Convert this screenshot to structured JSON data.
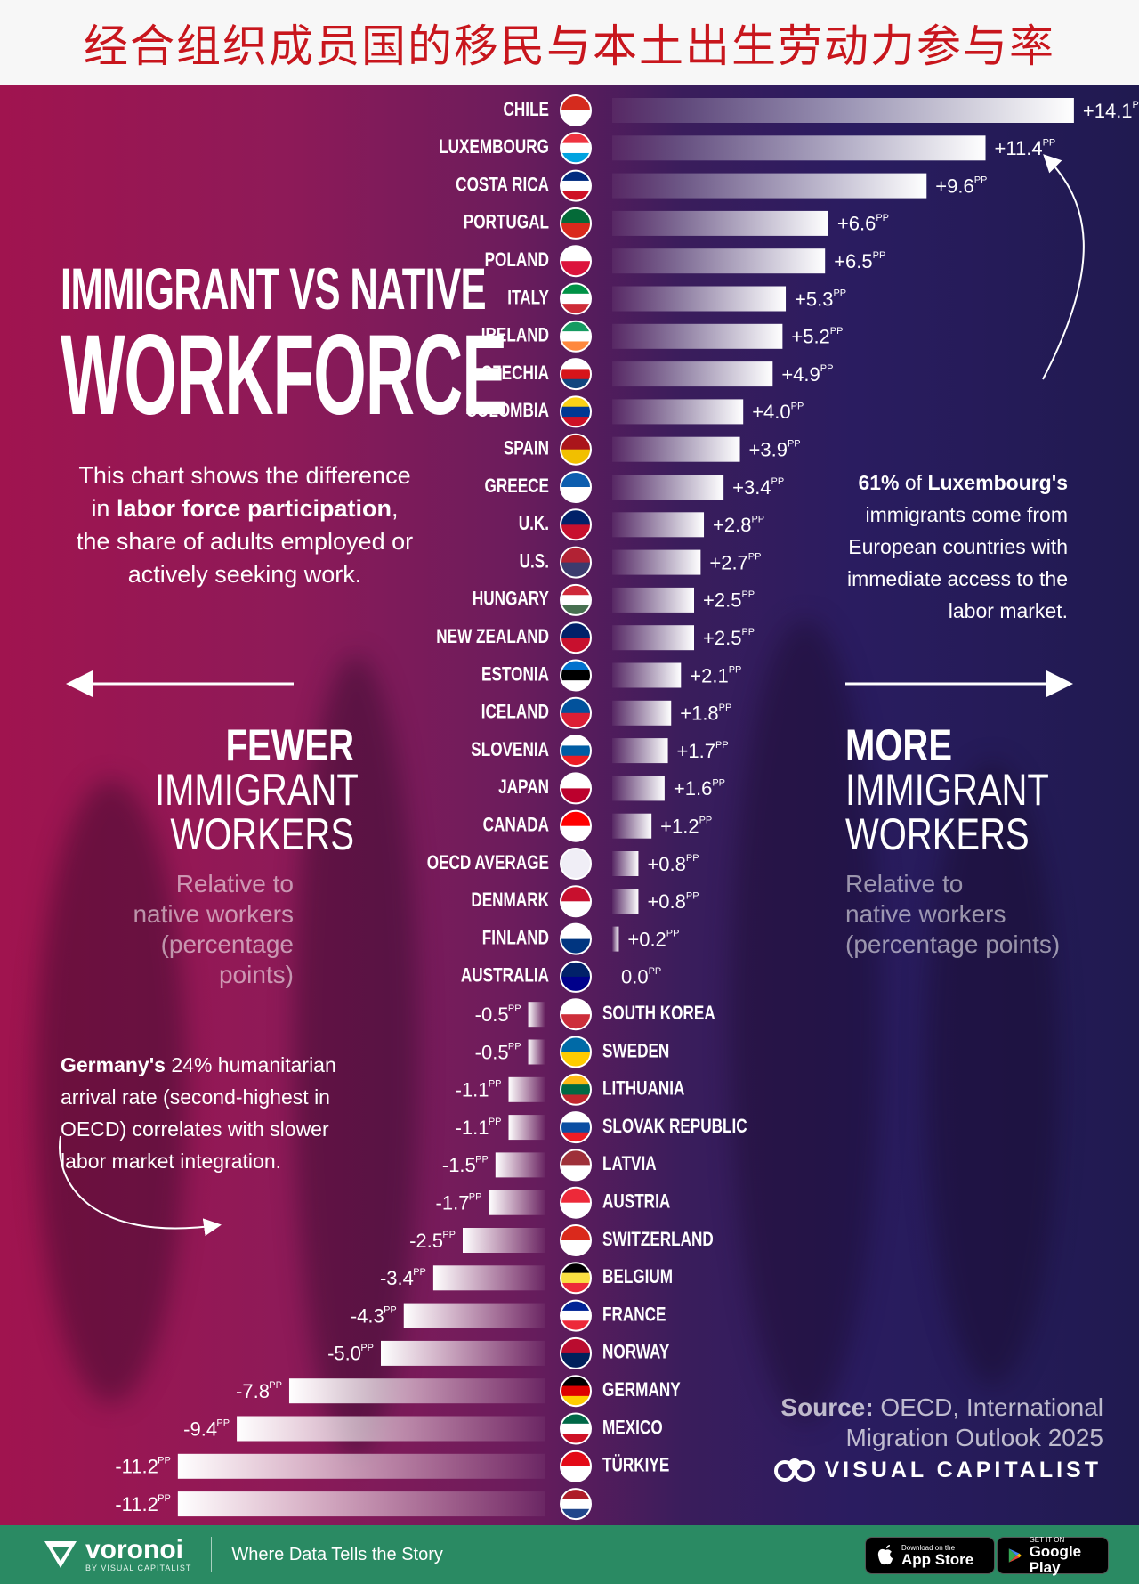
{
  "header": {
    "title": "经合组织成员国的移民与本土出生劳动力参与率"
  },
  "infographic": {
    "title_line1": "IMMIGRANT VS NATIVE",
    "title_line2": "WORKFORCE",
    "description": {
      "part1": "This chart shows the difference in ",
      "bold": "labor force participation",
      "part2": ", the share of adults employed or actively seeking work."
    },
    "left_heading": {
      "line1": "FEWER",
      "line2": "IMMIGRANT",
      "line3": "WORKERS"
    },
    "right_heading": {
      "line1": "MORE",
      "line2": "IMMIGRANT",
      "line3": "WORKERS"
    },
    "sub_label": {
      "line1": "Relative to",
      "line2": "native workers",
      "line3": "(percentage points)"
    },
    "note_right": {
      "bold1": "61%",
      "text1": " of ",
      "bold2": "Luxembourg's",
      "text2": " immigrants come from European countries with immediate access to the labor market."
    },
    "note_left": {
      "bold1": "Germany's",
      "text1": " 24% humanitarian arrival rate (second-highest in OECD) correlates with slower labor market integration."
    },
    "source": {
      "label": "Source:",
      "text1": " OECD, International",
      "text2": "Migration Outlook 2025"
    },
    "brand": "VISUAL CAPITALIST"
  },
  "chart_data": {
    "type": "bar",
    "orientation": "horizontal-diverging",
    "unit": "PP",
    "categories": [
      "CHILE",
      "LUXEMBOURG",
      "COSTA RICA",
      "PORTUGAL",
      "POLAND",
      "ITALY",
      "IRELAND",
      "CZECHIA",
      "COLOMBIA",
      "SPAIN",
      "GREECE",
      "U.K.",
      "U.S.",
      "HUNGARY",
      "NEW ZEALAND",
      "ESTONIA",
      "ICELAND",
      "SLOVENIA",
      "JAPAN",
      "CANADA",
      "OECD AVERAGE",
      "DENMARK",
      "FINLAND",
      "AUSTRALIA",
      "SOUTH KOREA",
      "SWEDEN",
      "LITHUANIA",
      "SLOVAK REPUBLIC",
      "LATVIA",
      "AUSTRIA",
      "SWITZERLAND",
      "BELGIUM",
      "FRANCE",
      "NORWAY",
      "GERMANY",
      "MEXICO",
      "TÜRKIYE",
      ""
    ],
    "values": [
      14.1,
      11.4,
      9.6,
      6.6,
      6.5,
      5.3,
      5.2,
      4.9,
      4.0,
      3.9,
      3.4,
      2.8,
      2.7,
      2.5,
      2.5,
      2.1,
      1.8,
      1.7,
      1.6,
      1.2,
      0.8,
      0.8,
      0.2,
      0.0,
      -0.5,
      -0.5,
      -1.1,
      -1.1,
      -1.5,
      -1.7,
      -2.5,
      -3.4,
      -4.3,
      -5.0,
      -7.8,
      -9.4,
      -11.2,
      -11.2
    ],
    "value_labels": [
      "+14.1",
      "+11.4",
      "+9.6",
      "+6.6",
      "+6.5",
      "+5.3",
      "+5.2",
      "+4.9",
      "+4.0",
      "+3.9",
      "+3.4",
      "+2.8",
      "+2.7",
      "+2.5",
      "+2.5",
      "+2.1",
      "+1.8",
      "+1.7",
      "+1.6",
      "+1.2",
      "+0.8",
      "+0.8",
      "+0.2",
      "0.0",
      "-0.5",
      "-0.5",
      "-1.1",
      "-1.1",
      "-1.5",
      "-1.7",
      "-2.5",
      "-3.4",
      "-4.3",
      "-5.0",
      "-7.8",
      "-9.4",
      "-11.2",
      "-11.2"
    ],
    "flag_colors": [
      [
        "#d52b1e",
        "#ffffff"
      ],
      [
        "#ef3340",
        "#ffffff",
        "#00a3e0"
      ],
      [
        "#002b7f",
        "#ffffff",
        "#ce1126"
      ],
      [
        "#046a38",
        "#da291c"
      ],
      [
        "#ffffff",
        "#dc143c"
      ],
      [
        "#009246",
        "#ffffff",
        "#ce2b37"
      ],
      [
        "#169b62",
        "#ffffff",
        "#ff883e"
      ],
      [
        "#ffffff",
        "#d7141a",
        "#11457e"
      ],
      [
        "#fcd116",
        "#003893",
        "#ce1126"
      ],
      [
        "#aa151b",
        "#f1bf00"
      ],
      [
        "#0d5eaf",
        "#ffffff"
      ],
      [
        "#012169",
        "#c8102e"
      ],
      [
        "#b22234",
        "#3c3b6e"
      ],
      [
        "#ce2939",
        "#ffffff",
        "#477050"
      ],
      [
        "#012169",
        "#c8102e"
      ],
      [
        "#0072ce",
        "#000000",
        "#ffffff"
      ],
      [
        "#02529c",
        "#dc1e35"
      ],
      [
        "#ffffff",
        "#005da4",
        "#ed1c24"
      ],
      [
        "#ffffff",
        "#bc002d"
      ],
      [
        "#ff0000",
        "#ffffff"
      ],
      [
        "#f0eef6",
        "#f0eef6"
      ],
      [
        "#c8102e",
        "#ffffff"
      ],
      [
        "#ffffff",
        "#003580"
      ],
      [
        "#012169",
        "#00008b"
      ],
      [
        "#ffffff",
        "#cd2e3a"
      ],
      [
        "#006aa7",
        "#fecc00"
      ],
      [
        "#fdb913",
        "#006a44",
        "#c1272d"
      ],
      [
        "#ffffff",
        "#0b4ea2",
        "#ee1c25"
      ],
      [
        "#9e3039",
        "#ffffff"
      ],
      [
        "#ed2939",
        "#ffffff"
      ],
      [
        "#da291c",
        "#ffffff"
      ],
      [
        "#000000",
        "#fae042",
        "#ed2939"
      ],
      [
        "#002395",
        "#ffffff",
        "#ed2939"
      ],
      [
        "#ba0c2f",
        "#00205b"
      ],
      [
        "#000000",
        "#dd0000",
        "#ffce00"
      ],
      [
        "#006847",
        "#ffffff",
        "#ce1126"
      ],
      [
        "#e30a17",
        "#ffffff"
      ],
      [
        "#ae1c28",
        "#ffffff",
        "#21468b"
      ]
    ],
    "xlim": [
      -11.2,
      14.1
    ]
  },
  "footer": {
    "brand": "voronoi",
    "brand_sub": "BY VISUAL CAPITALIST",
    "tagline": "Where Data Tells the Story",
    "appstore_small": "Download on the",
    "appstore_big": "App Store",
    "googleplay_small": "GET IT ON",
    "googleplay_big": "Google Play"
  }
}
